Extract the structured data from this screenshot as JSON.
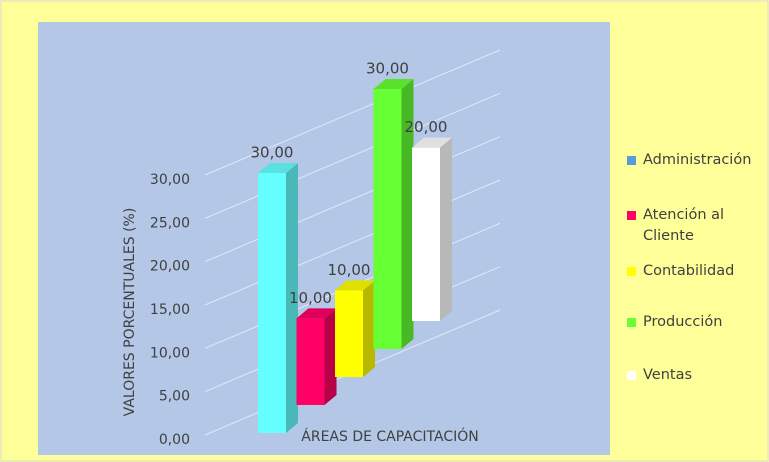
{
  "chart_data": {
    "type": "bar3d",
    "categories": [
      "Administración",
      "Atención al Cliente",
      "Contabilidad",
      "Producción",
      "Ventas"
    ],
    "series": [
      {
        "name": "Valores",
        "values": [
          30,
          10,
          10,
          30,
          20
        ],
        "value_labels": [
          "30,00",
          "10,00",
          "10,00",
          "30,00",
          "20,00"
        ],
        "colors": [
          "#66ffff",
          "#ff0066",
          "#ffff00",
          "#66ff33",
          "#ffffff"
        ]
      }
    ],
    "legend_colors": [
      "#5b9bd5",
      "#ff0066",
      "#ffff00",
      "#66ff33",
      "#ffffff"
    ],
    "ylabel": "VALORES PORCENTUALES (%)",
    "xlabel": "ÁREAS DE CAPACITACIÓN",
    "ylim": [
      0,
      30
    ],
    "yticks": [
      {
        "value": 0,
        "label": "0,00"
      },
      {
        "value": 5,
        "label": "5,00"
      },
      {
        "value": 10,
        "label": "10,00"
      },
      {
        "value": 15,
        "label": "15,00"
      },
      {
        "value": 20,
        "label": "20,00"
      },
      {
        "value": 25,
        "label": "25,00"
      },
      {
        "value": 30,
        "label": "30,00"
      }
    ],
    "grid": true,
    "legend": "right"
  }
}
